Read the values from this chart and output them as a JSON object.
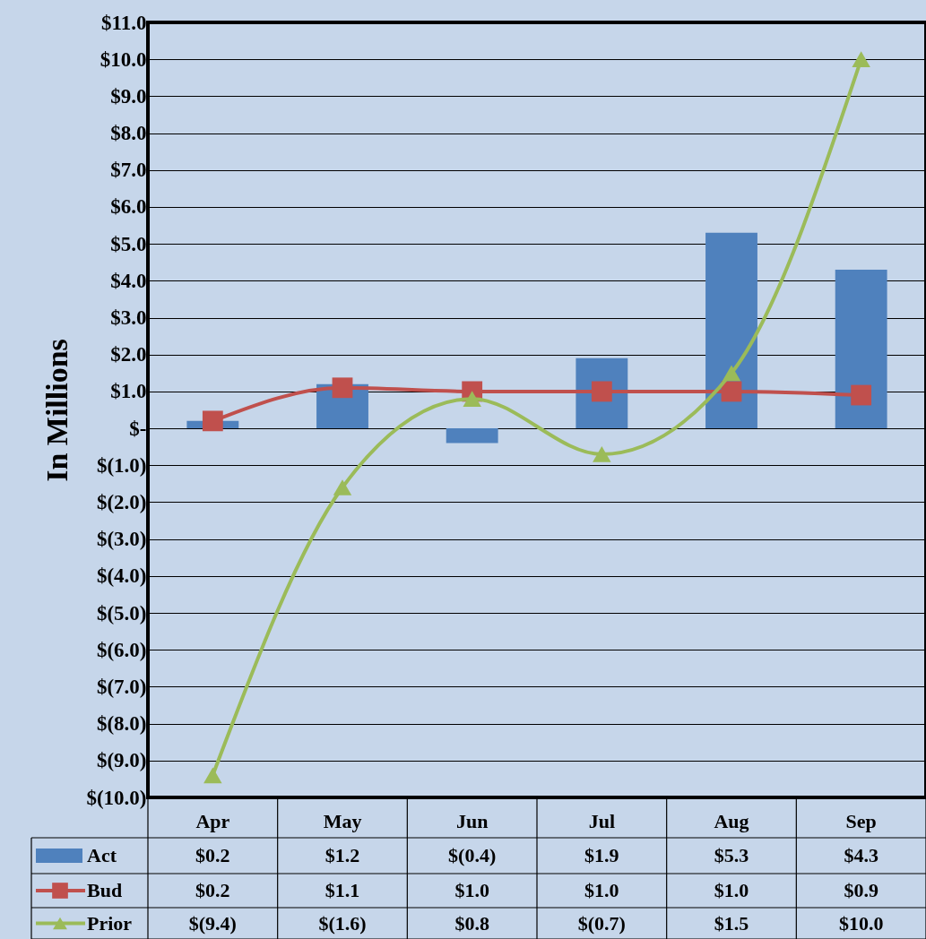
{
  "chart_data": {
    "type": "bar",
    "ylabel": "In Millions",
    "categories": [
      "Apr",
      "May",
      "Jun",
      "Jul",
      "Aug",
      "Sep"
    ],
    "ylim": [
      -10,
      11
    ],
    "yticks": [
      {
        "value": -10,
        "label": "$(10.0)"
      },
      {
        "value": -9,
        "label": "$(9.0)"
      },
      {
        "value": -8,
        "label": "$(8.0)"
      },
      {
        "value": -7,
        "label": "$(7.0)"
      },
      {
        "value": -6,
        "label": "$(6.0)"
      },
      {
        "value": -5,
        "label": "$(5.0)"
      },
      {
        "value": -4,
        "label": "$(4.0)"
      },
      {
        "value": -3,
        "label": "$(3.0)"
      },
      {
        "value": -2,
        "label": "$(2.0)"
      },
      {
        "value": -1,
        "label": "$(1.0)"
      },
      {
        "value": 0,
        "label": "$-"
      },
      {
        "value": 1,
        "label": "$1.0"
      },
      {
        "value": 2,
        "label": "$2.0"
      },
      {
        "value": 3,
        "label": "$3.0"
      },
      {
        "value": 4,
        "label": "$4.0"
      },
      {
        "value": 5,
        "label": "$5.0"
      },
      {
        "value": 6,
        "label": "$6.0"
      },
      {
        "value": 7,
        "label": "$7.0"
      },
      {
        "value": 8,
        "label": "$8.0"
      },
      {
        "value": 9,
        "label": "$9.0"
      },
      {
        "value": 10,
        "label": "$10.0"
      },
      {
        "value": 11,
        "label": "$11.0"
      }
    ],
    "grid": "y",
    "legend": "bottom",
    "series": [
      {
        "name": "Act",
        "color": "#4f81bd",
        "values": [
          0.2,
          1.2,
          -0.4,
          1.9,
          5.3,
          4.3
        ],
        "value_labels": [
          "$0.2",
          "$1.2",
          "$(0.4)",
          "$1.9",
          "$5.3",
          "$4.3"
        ]
      },
      {
        "name": "Bud",
        "type": "line",
        "marker": "square",
        "color": "#c0504d",
        "values": [
          0.2,
          1.1,
          1.0,
          1.0,
          1.0,
          0.9
        ],
        "value_labels": [
          "$0.2",
          "$1.1",
          "$1.0",
          "$1.0",
          "$1.0",
          "$0.9"
        ]
      },
      {
        "name": "Prior",
        "type": "line",
        "marker": "triangle",
        "color": "#9bbb59",
        "values": [
          -9.4,
          -1.6,
          0.8,
          -0.7,
          1.5,
          10.0
        ],
        "value_labels": [
          "$(9.4)",
          "$(1.6)",
          "$0.8",
          "$(0.7)",
          "$1.5",
          "$10.0"
        ]
      }
    ]
  }
}
